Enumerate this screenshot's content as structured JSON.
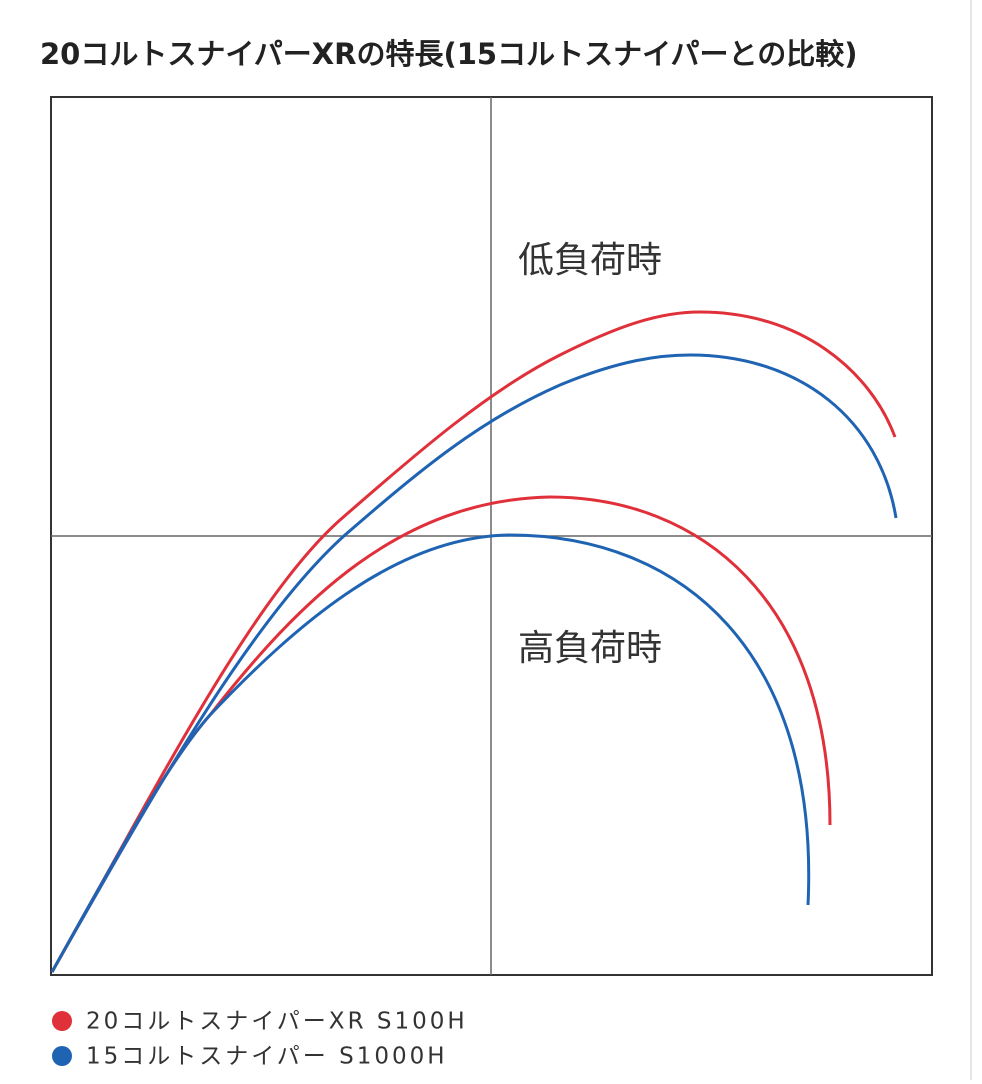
{
  "title": "20コルトスナイパーXRの特長(15コルトスナイパーとの比較)",
  "annotations": [
    "低負荷時",
    "高負荷時"
  ],
  "legend": [
    {
      "name": "20コルトスナイパーXR S100H",
      "color": "#e0303a"
    },
    {
      "name": "15コルトスナイパー S1000H",
      "color": "#1f63b3"
    }
  ]
}
